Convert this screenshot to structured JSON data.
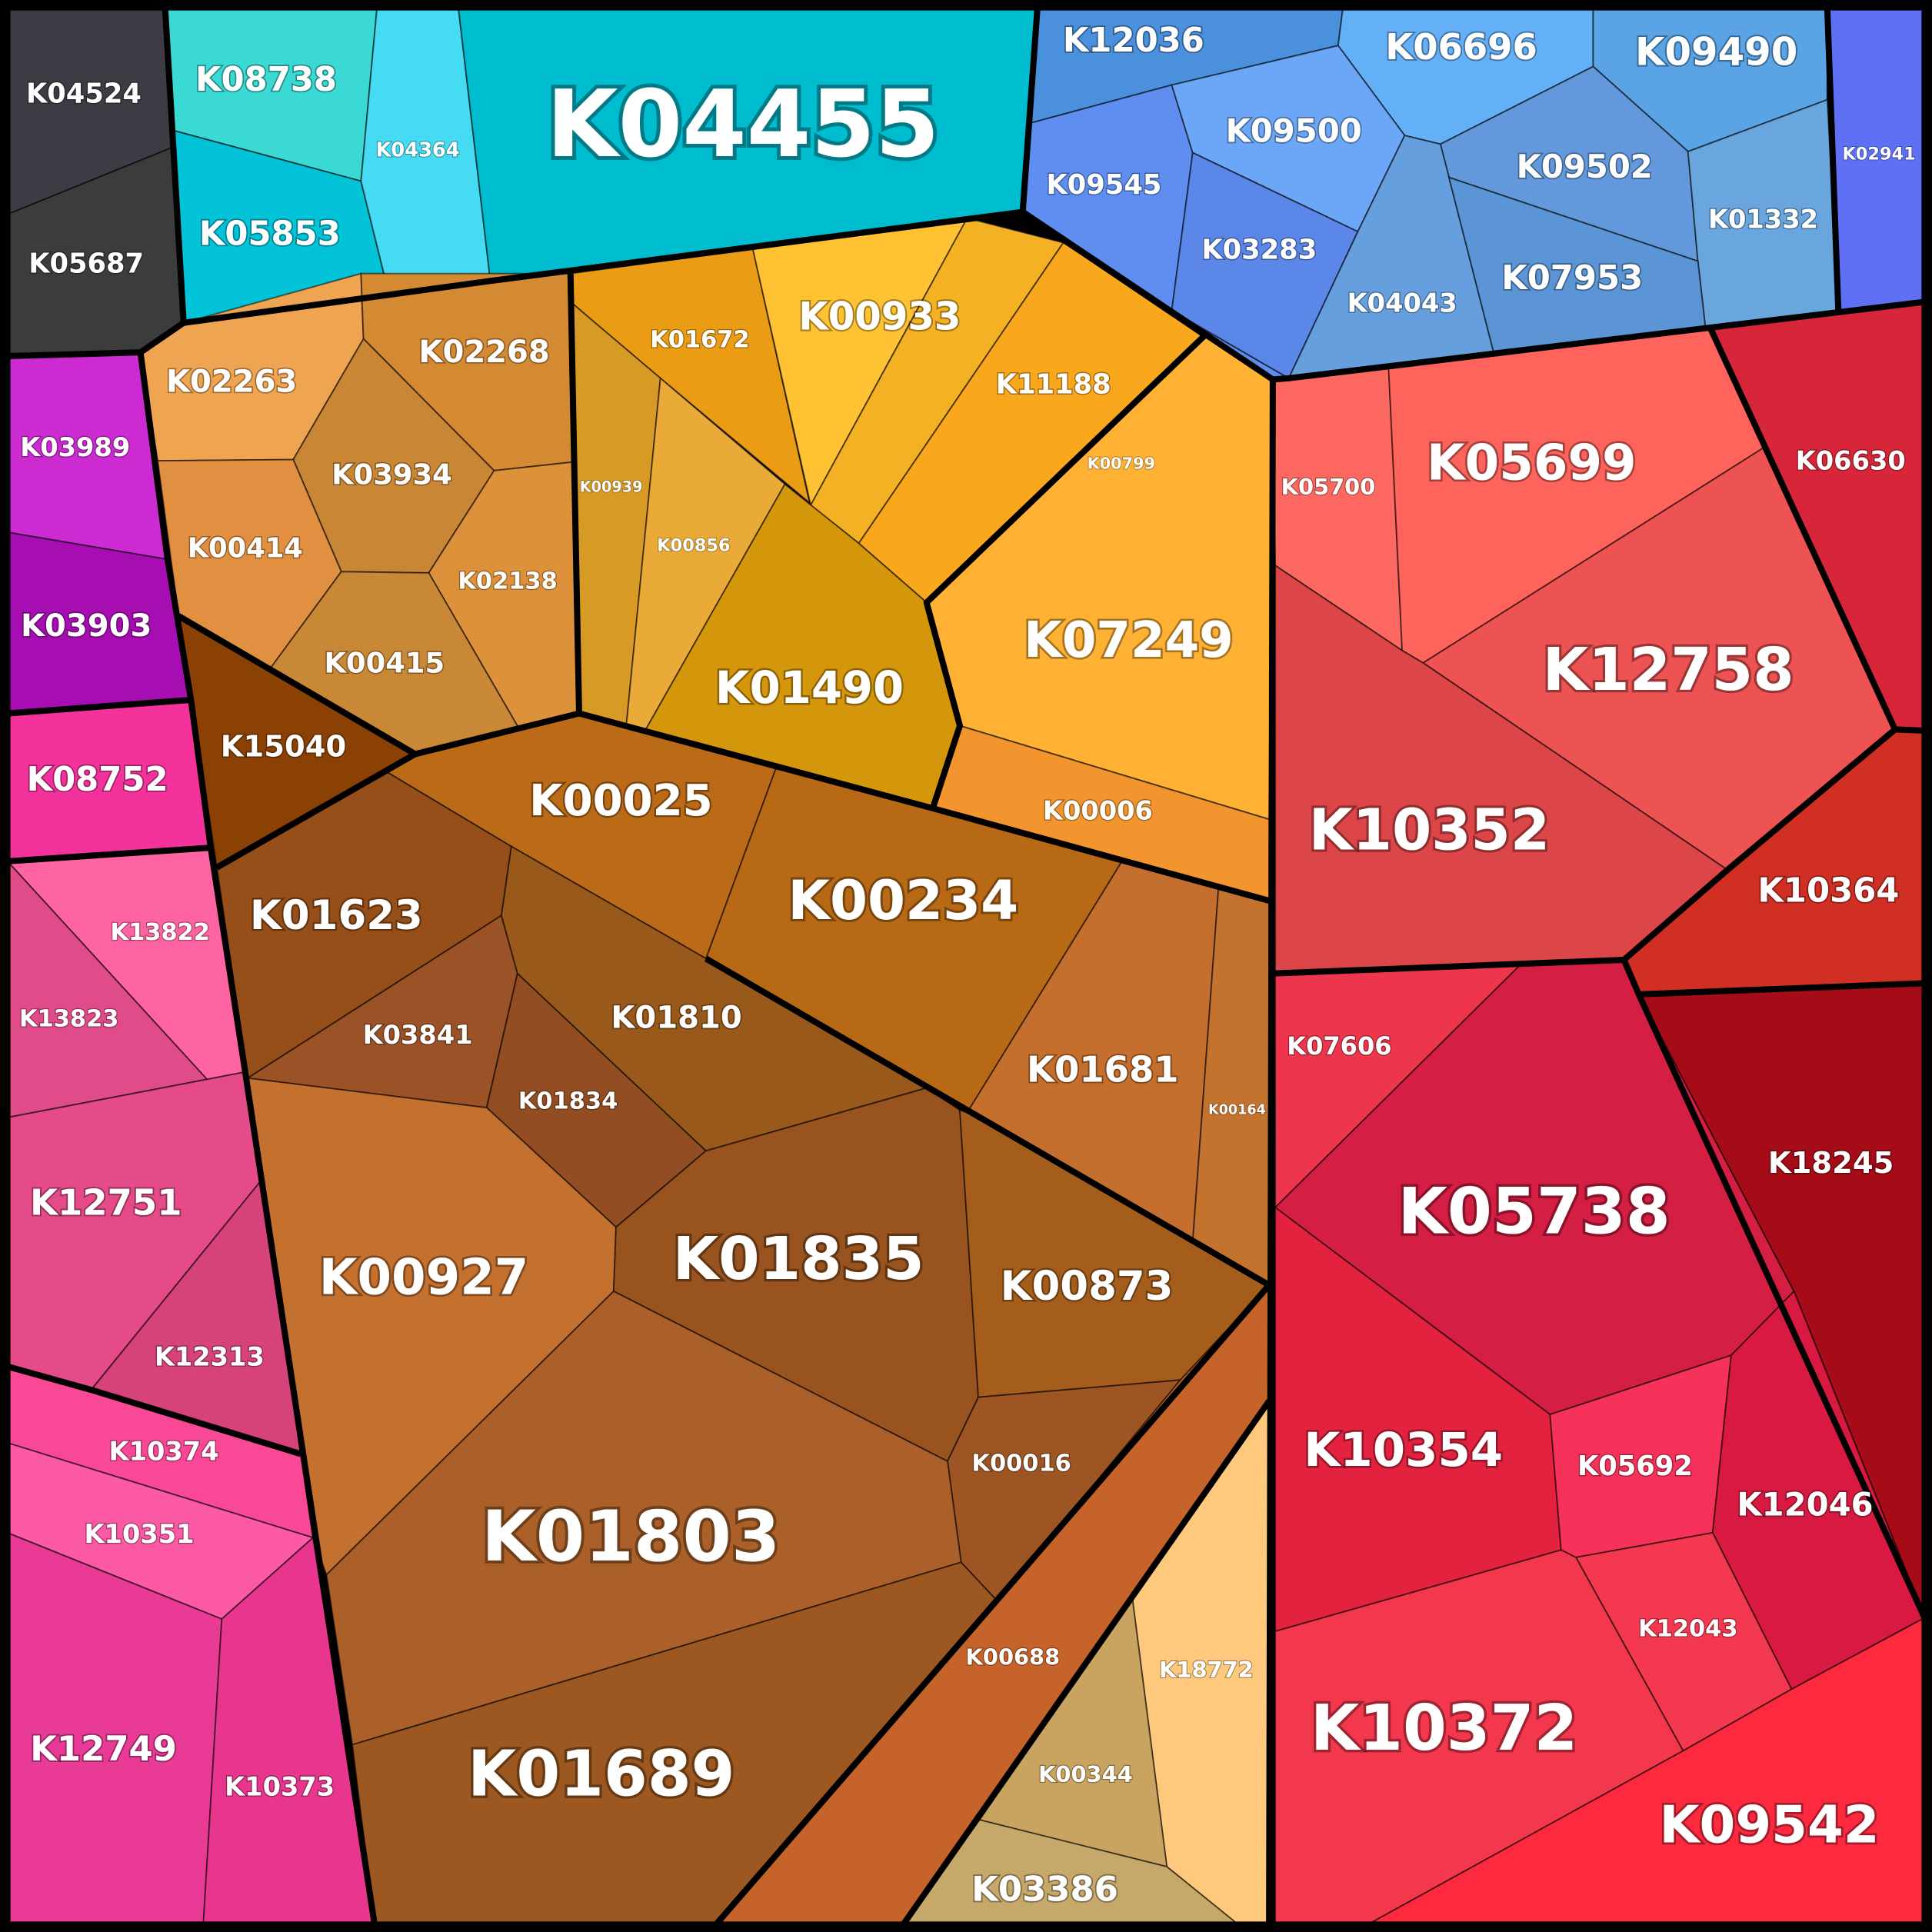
{
  "chart_data": {
    "type": "voronoi-treemap",
    "cells": [
      {
        "id": "K04524",
        "color": "#3d3c44"
      },
      {
        "id": "K05687",
        "color": "#3b3d3d"
      },
      {
        "id": "K08738",
        "color": "#3ad9d3"
      },
      {
        "id": "K05853",
        "color": "#03c3d8"
      },
      {
        "id": "K04364",
        "color": "#45dcf3"
      },
      {
        "id": "K04455",
        "color": "#00bccf"
      },
      {
        "id": "K12036",
        "color": "#4a90dc"
      },
      {
        "id": "K06696",
        "color": "#64b0f7"
      },
      {
        "id": "K09490",
        "color": "#5aa4e6"
      },
      {
        "id": "K02941",
        "color": "#5f70f5"
      },
      {
        "id": "K09545",
        "color": "#5f8ef0"
      },
      {
        "id": "K09500",
        "color": "#6ca6f6"
      },
      {
        "id": "K09502",
        "color": "#6399dc"
      },
      {
        "id": "K01332",
        "color": "#6aa6de"
      },
      {
        "id": "K03283",
        "color": "#5b87e9"
      },
      {
        "id": "K04043",
        "color": "#669fdd"
      },
      {
        "id": "K07953",
        "color": "#5b95d6"
      },
      {
        "id": "K03989",
        "color": "#cb2bd0"
      },
      {
        "id": "K03903",
        "color": "#a60eb2"
      },
      {
        "id": "K08752",
        "color": "#f3329b"
      },
      {
        "id": "K13822",
        "color": "#fe64a1"
      },
      {
        "id": "K13823",
        "color": "#e04b8a"
      },
      {
        "id": "K12751",
        "color": "#e54b88"
      },
      {
        "id": "K12313",
        "color": "#d6427a"
      },
      {
        "id": "K10374",
        "color": "#f84896"
      },
      {
        "id": "K10351",
        "color": "#fd5aa5"
      },
      {
        "id": "K12749",
        "color": "#e93a96"
      },
      {
        "id": "K10373",
        "color": "#e8358e"
      },
      {
        "id": "K02263",
        "color": "#eea450"
      },
      {
        "id": "K02268",
        "color": "#d38a33"
      },
      {
        "id": "K03934",
        "color": "#c98634"
      },
      {
        "id": "K00414",
        "color": "#e19041"
      },
      {
        "id": "K02138",
        "color": "#dd913a"
      },
      {
        "id": "K00415",
        "color": "#c98836"
      },
      {
        "id": "K15040",
        "color": "#8b4103"
      },
      {
        "id": "K01672",
        "color": "#e99c14"
      },
      {
        "id": "K00933",
        "color": "#fec232"
      },
      {
        "id": "K11188",
        "color": "#f3b123"
      },
      {
        "id": "K00799",
        "color": "#f9a71c"
      },
      {
        "id": "K00939",
        "color": "#d79a25"
      },
      {
        "id": "K00856",
        "color": "#eaaa38"
      },
      {
        "id": "K01490",
        "color": "#d4960a"
      },
      {
        "id": "K07249",
        "color": "#ffb133"
      },
      {
        "id": "K00006",
        "color": "#f2952e"
      },
      {
        "id": "K00025",
        "color": "#bb6a17"
      },
      {
        "id": "K00234",
        "color": "#b86916"
      },
      {
        "id": "K01623",
        "color": "#964f18"
      },
      {
        "id": "K03841",
        "color": "#9b5226"
      },
      {
        "id": "K01834",
        "color": "#924d22"
      },
      {
        "id": "K01810",
        "color": "#98591b"
      },
      {
        "id": "K01681",
        "color": "#c46f2d"
      },
      {
        "id": "K00164",
        "color": "#c4732f"
      },
      {
        "id": "K00927",
        "color": "#c47130"
      },
      {
        "id": "K01835",
        "color": "#99531e"
      },
      {
        "id": "K00873",
        "color": "#a45d1b"
      },
      {
        "id": "K00016",
        "color": "#9c5523"
      },
      {
        "id": "K01803",
        "color": "#ab6029"
      },
      {
        "id": "K01689",
        "color": "#9c5820"
      },
      {
        "id": "K00688",
        "color": "#c6632a"
      },
      {
        "id": "K18772",
        "color": "#ffc97d"
      },
      {
        "id": "K00344",
        "color": "#c9a360"
      },
      {
        "id": "K03386",
        "color": "#c6a86b"
      },
      {
        "id": "K05700",
        "color": "#fd6961"
      },
      {
        "id": "K05699",
        "color": "#fe645c"
      },
      {
        "id": "K06630",
        "color": "#d72639"
      },
      {
        "id": "K12758",
        "color": "#ee5353"
      },
      {
        "id": "K10352",
        "color": "#dc4649"
      },
      {
        "id": "K10364",
        "color": "#d12f24"
      },
      {
        "id": "K07606",
        "color": "#ed364e"
      },
      {
        "id": "K05738",
        "color": "#d41e43"
      },
      {
        "id": "K18245",
        "color": "#a60c17"
      },
      {
        "id": "K10354",
        "color": "#e32240"
      },
      {
        "id": "K05692",
        "color": "#f6325a"
      },
      {
        "id": "K12046",
        "color": "#d81941"
      },
      {
        "id": "K12043",
        "color": "#f33850"
      },
      {
        "id": "K10372",
        "color": "#f3384e"
      },
      {
        "id": "K09542",
        "color": "#fd2a3f"
      }
    ]
  }
}
